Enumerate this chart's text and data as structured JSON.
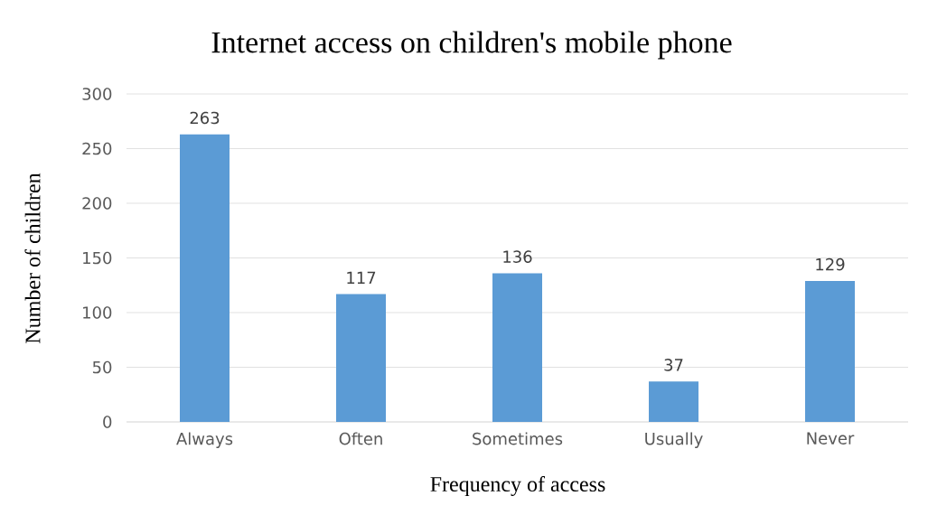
{
  "chart_data": {
    "type": "bar",
    "title": "Internet access on children's mobile phone",
    "xlabel": "Frequency of access",
    "ylabel": "Number of children",
    "categories": [
      "Always",
      "Often",
      "Sometimes",
      "Usually",
      "Never"
    ],
    "values": [
      263,
      117,
      136,
      37,
      129
    ],
    "color": "#5b9bd5",
    "ylim": [
      0,
      300
    ],
    "yticks": [
      0,
      50,
      100,
      150,
      200,
      250,
      300
    ],
    "grid": "y",
    "data_labels": true
  }
}
